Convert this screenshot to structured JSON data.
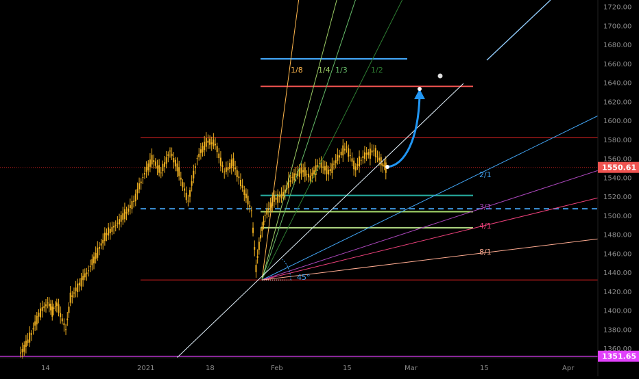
{
  "chart_data": {
    "type": "candlestick",
    "title": "",
    "colors": {
      "background": "#000000",
      "candle": "#f0b020",
      "axis_text": "#8a8a8a",
      "price_badge": "#ef5350",
      "low_badge": "#e040fb",
      "fan_level_top": "#42a5f5",
      "fan_level_red": "#ef5350",
      "range_line": "#b71c1c",
      "dashed_level": "#42a5f5",
      "magenta_line": "#e040fb",
      "arrow": "#2196f3"
    },
    "y_axis": {
      "ticks": [
        "1720.00",
        "1700.00",
        "1680.00",
        "1660.00",
        "1640.00",
        "1620.00",
        "1600.00",
        "1580.00",
        "1560.00",
        "1540.00",
        "1520.00",
        "1500.00",
        "1480.00",
        "1460.00",
        "1440.00",
        "1420.00",
        "1400.00",
        "1380.00",
        "1360.00"
      ],
      "range": [
        1350,
        1727
      ]
    },
    "x_axis": {
      "ticks": [
        "14",
        "2021",
        "18",
        "Feb",
        "15",
        "Mar",
        "15",
        "Apr"
      ]
    },
    "current_price": "1550.61",
    "marked_low": "1351.65",
    "price_series": [
      [
        "2021-01-07",
        1355
      ],
      [
        "2021-01-09",
        1370
      ],
      [
        "2021-01-11",
        1396
      ],
      [
        "2021-01-13",
        1408
      ],
      [
        "2021-01-14",
        1400
      ],
      [
        "2021-01-15",
        1406
      ],
      [
        "2021-01-17",
        1380
      ],
      [
        "2021-01-18",
        1412
      ],
      [
        "2021-01-20",
        1428
      ],
      [
        "2021-01-22",
        1442
      ],
      [
        "2021-01-24",
        1462
      ],
      [
        "2021-01-26",
        1480
      ],
      [
        "2021-01-28",
        1490
      ],
      [
        "2021-01-30",
        1500
      ],
      [
        "2021-02-01",
        1515
      ],
      [
        "2021-02-03",
        1540
      ],
      [
        "2021-02-05",
        1560
      ],
      [
        "2021-02-07",
        1545
      ],
      [
        "2021-02-09",
        1568
      ],
      [
        "2021-02-11",
        1545
      ],
      [
        "2021-02-13",
        1515
      ],
      [
        "2021-02-15",
        1560
      ],
      [
        "2021-02-17",
        1578
      ],
      [
        "2021-02-19",
        1575
      ],
      [
        "2021-02-21",
        1546
      ],
      [
        "2021-02-23",
        1555
      ],
      [
        "2021-02-25",
        1530
      ],
      [
        "2021-02-27",
        1505
      ],
      [
        "2021-02-28",
        1445
      ],
      [
        "2021-03-01",
        1478
      ],
      [
        "2021-03-02",
        1500
      ],
      [
        "2021-03-04",
        1517
      ],
      [
        "2021-03-06",
        1522
      ],
      [
        "2021-03-08",
        1540
      ],
      [
        "2021-03-10",
        1548
      ],
      [
        "2021-03-12",
        1540
      ],
      [
        "2021-03-14",
        1555
      ],
      [
        "2021-03-16",
        1545
      ],
      [
        "2021-03-18",
        1560
      ],
      [
        "2021-03-20",
        1572
      ],
      [
        "2021-03-22",
        1550
      ],
      [
        "2021-03-24",
        1564
      ],
      [
        "2021-03-26",
        1568
      ],
      [
        "2021-03-28",
        1553
      ],
      [
        "2021-03-29",
        1551
      ]
    ],
    "horizontal_levels": {
      "resistance": 1582,
      "support_low": 1432,
      "dashed": 1507,
      "magenta": 1351.65,
      "target_red": 1636,
      "target_blue": 1665,
      "green_levels": [
        1521,
        1504,
        1487
      ]
    },
    "gann_fan": {
      "origin_price": 1432,
      "angle_label": "45°",
      "labels": [
        "1/8",
        "1/4",
        "1/3",
        "1/2",
        "2/1",
        "3/1",
        "4/1",
        "8/1"
      ]
    }
  }
}
